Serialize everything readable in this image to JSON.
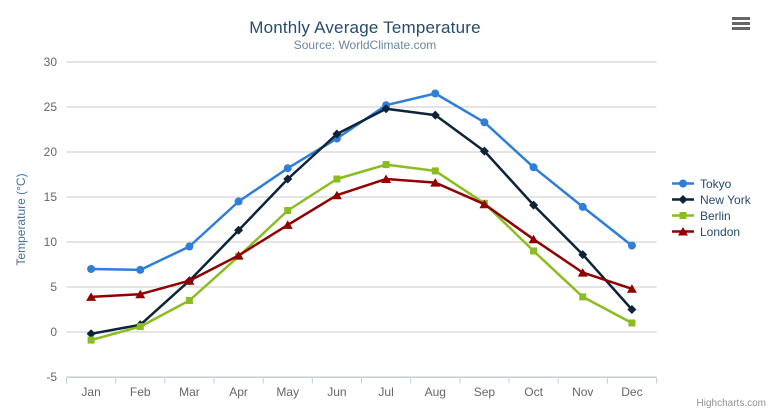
{
  "chart_data": {
    "type": "line",
    "title": "Monthly Average Temperature",
    "subtitle": "Source: WorldClimate.com",
    "xlabel": "",
    "ylabel": "Temperature (°C)",
    "categories": [
      "Jan",
      "Feb",
      "Mar",
      "Apr",
      "May",
      "Jun",
      "Jul",
      "Aug",
      "Sep",
      "Oct",
      "Nov",
      "Dec"
    ],
    "ylim": [
      -5,
      30
    ],
    "yticks": [
      -5,
      0,
      5,
      10,
      15,
      20,
      25,
      30
    ],
    "grid": true,
    "legend_position": "right",
    "series": [
      {
        "name": "Tokyo",
        "color": "#2f7ed8",
        "marker": "circle",
        "values": [
          7.0,
          6.9,
          9.5,
          14.5,
          18.2,
          21.5,
          25.2,
          26.5,
          23.3,
          18.3,
          13.9,
          9.6
        ]
      },
      {
        "name": "New York",
        "color": "#0d233a",
        "marker": "diamond",
        "values": [
          -0.2,
          0.8,
          5.7,
          11.3,
          17.0,
          22.0,
          24.8,
          24.1,
          20.1,
          14.1,
          8.6,
          2.5
        ]
      },
      {
        "name": "Berlin",
        "color": "#8bbc21",
        "marker": "square",
        "values": [
          -0.9,
          0.6,
          3.5,
          8.4,
          13.5,
          17.0,
          18.6,
          17.9,
          14.3,
          9.0,
          3.9,
          1.0
        ]
      },
      {
        "name": "London",
        "color": "#910000",
        "marker": "triangle",
        "values": [
          3.9,
          4.2,
          5.7,
          8.5,
          11.9,
          15.2,
          17.0,
          16.6,
          14.2,
          10.3,
          6.6,
          4.8
        ]
      }
    ]
  },
  "colors": {
    "title": "#274b6d",
    "subtitle": "#6d869f",
    "gridline": "#c8c8c8",
    "axis_line": "#c0d0e0",
    "axis_label": "#666666",
    "axis_title": "#4572a7",
    "legend_text": "#274b6d",
    "credits": "#909090",
    "menu_icon": "#666666"
  },
  "menu": {
    "icon": "hamburger-icon"
  },
  "credits": {
    "label": "Highcharts.com"
  }
}
